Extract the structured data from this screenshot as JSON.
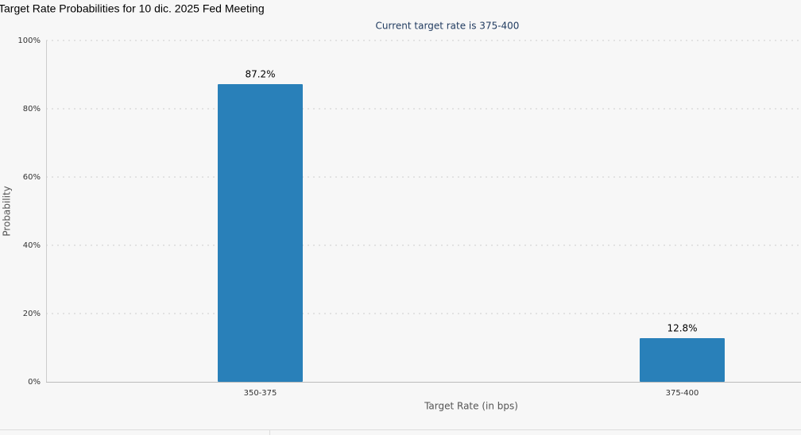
{
  "chart_data": {
    "type": "bar",
    "title": "Target Rate Probabilities for 10 dic. 2025 Fed Meeting",
    "subtitle": "Current target rate is 375-400",
    "x_label": "Target Rate (in bps)",
    "y_label": "Probability",
    "categories": [
      "350-375",
      "375-400"
    ],
    "values": [
      87.2,
      12.8
    ],
    "value_labels": [
      "87.2%",
      "12.8%"
    ],
    "color": "#2980b9",
    "ylim": [
      0,
      100
    ],
    "yticks": [
      {
        "value": 0,
        "label": "0%"
      },
      {
        "value": 20,
        "label": "20%"
      },
      {
        "value": 40,
        "label": "40%"
      },
      {
        "value": 60,
        "label": "60%"
      },
      {
        "value": 80,
        "label": "80%"
      },
      {
        "value": 100,
        "label": "100%"
      }
    ],
    "grid": true
  }
}
